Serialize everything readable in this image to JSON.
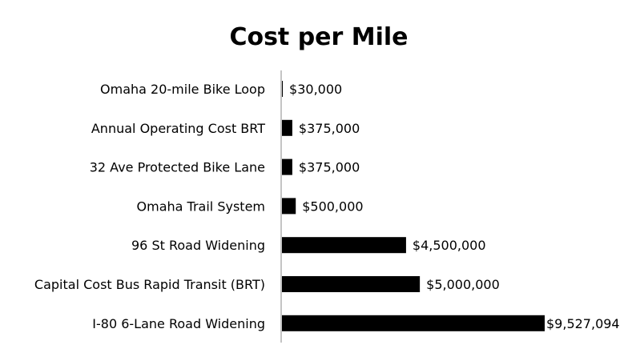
{
  "chart_data": {
    "type": "bar",
    "orientation": "horizontal",
    "title": "Cost per Mile",
    "xlabel": "",
    "ylabel": "",
    "categories": [
      "Omaha 20-mile Bike Loop",
      "Annual Operating Cost BRT",
      "32 Ave Protected Bike Lane",
      "Omaha Trail System",
      "96 St Road Widening",
      "Capital Cost Bus Rapid Transit (BRT)",
      "I-80 6-Lane Road Widening"
    ],
    "values": [
      30000,
      375000,
      375000,
      500000,
      4500000,
      5000000,
      9527094
    ],
    "data_labels": [
      "$30,000",
      "$375,000",
      "$375,000",
      "$500,000",
      "$4,500,000",
      "$5,000,000",
      "$9,527,094"
    ],
    "xlim": [
      0,
      9527094
    ],
    "grid": false,
    "legend": "none",
    "bar_color": "#000000"
  }
}
